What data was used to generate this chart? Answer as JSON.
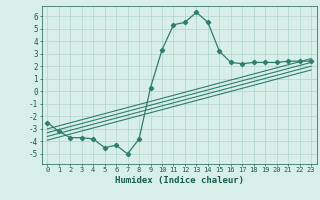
{
  "x": [
    0,
    1,
    2,
    3,
    4,
    5,
    6,
    7,
    8,
    9,
    10,
    11,
    12,
    13,
    14,
    15,
    16,
    17,
    18,
    19,
    20,
    21,
    22,
    23
  ],
  "y_main": [
    -2.5,
    -3.2,
    -3.7,
    -3.7,
    -3.8,
    -4.5,
    -4.3,
    -5.0,
    -3.8,
    0.3,
    3.3,
    5.3,
    5.5,
    6.3,
    5.5,
    3.2,
    2.3,
    2.2,
    2.3,
    2.3,
    2.3,
    2.4,
    2.4,
    2.4
  ],
  "regression_lines": [
    {
      "x0": 0,
      "y0": -3.9,
      "x1": 23,
      "y1": 1.7
    },
    {
      "x0": 0,
      "y0": -3.6,
      "x1": 23,
      "y1": 2.0
    },
    {
      "x0": 0,
      "y0": -3.3,
      "x1": 23,
      "y1": 2.3
    },
    {
      "x0": 0,
      "y0": -3.0,
      "x1": 23,
      "y1": 2.6
    }
  ],
  "line_color": "#2e7d6e",
  "bg_color": "#d8eee9",
  "grid_color": "#afd4cc",
  "xlabel": "Humidex (Indice chaleur)",
  "ylim": [
    -5.8,
    6.8
  ],
  "xlim": [
    -0.5,
    23.5
  ],
  "yticks": [
    -5,
    -4,
    -3,
    -2,
    -1,
    0,
    1,
    2,
    3,
    4,
    5,
    6
  ],
  "xticks": [
    0,
    1,
    2,
    3,
    4,
    5,
    6,
    7,
    8,
    9,
    10,
    11,
    12,
    13,
    14,
    15,
    16,
    17,
    18,
    19,
    20,
    21,
    22,
    23
  ],
  "marker": "D",
  "markersize": 2.2,
  "linewidth": 0.9,
  "reg_linewidth": 0.8,
  "tick_fontsize": 5.0,
  "xlabel_fontsize": 6.5,
  "font_color": "#1a5c50"
}
